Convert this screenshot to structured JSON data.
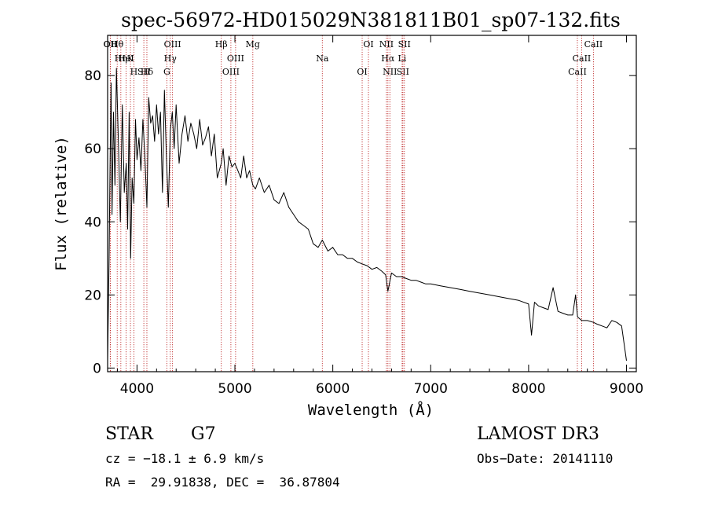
{
  "chart_data": {
    "type": "line",
    "title": "spec-56972-HD015029N381811B01_sp07-132.fits",
    "xlabel": "Wavelength (Å)",
    "ylabel": "Flux (relative)",
    "xlim": [
      3700,
      9100
    ],
    "ylim": [
      -1,
      91
    ],
    "xticks": [
      4000,
      5000,
      6000,
      7000,
      8000,
      9000
    ],
    "yticks": [
      0,
      20,
      40,
      60,
      80
    ],
    "series": [
      {
        "name": "flux",
        "color": "#000000",
        "x": [
          3700,
          3715,
          3725,
          3735,
          3745,
          3760,
          3775,
          3790,
          3810,
          3830,
          3850,
          3870,
          3890,
          3905,
          3920,
          3935,
          3950,
          3968,
          3985,
          4000,
          4020,
          4040,
          4060,
          4080,
          4101,
          4120,
          4140,
          4160,
          4180,
          4200,
          4220,
          4240,
          4260,
          4280,
          4300,
          4320,
          4340,
          4360,
          4380,
          4400,
          4430,
          4460,
          4490,
          4520,
          4550,
          4580,
          4610,
          4640,
          4670,
          4700,
          4730,
          4760,
          4790,
          4820,
          4861,
          4880,
          4910,
          4940,
          4970,
          5000,
          5030,
          5060,
          5090,
          5120,
          5150,
          5183,
          5210,
          5250,
          5300,
          5350,
          5400,
          5450,
          5500,
          5550,
          5600,
          5650,
          5700,
          5750,
          5800,
          5850,
          5893,
          5950,
          6000,
          6050,
          6100,
          6150,
          6200,
          6250,
          6300,
          6350,
          6400,
          6450,
          6500,
          6540,
          6563,
          6600,
          6650,
          6700,
          6750,
          6800,
          6850,
          6900,
          6950,
          7000,
          7100,
          7200,
          7300,
          7400,
          7500,
          7600,
          7700,
          7800,
          7900,
          8000,
          8030,
          8060,
          8100,
          8150,
          8200,
          8250,
          8300,
          8350,
          8400,
          8450,
          8480,
          8500,
          8542,
          8600,
          8662,
          8700,
          8750,
          8800,
          8850,
          8900,
          8950,
          9000
        ],
        "values": [
          2,
          30,
          55,
          78,
          42,
          70,
          50,
          82,
          62,
          40,
          72,
          48,
          56,
          38,
          70,
          30,
          52,
          45,
          68,
          57,
          63,
          54,
          68,
          58,
          44,
          74,
          67,
          69,
          62,
          72,
          64,
          70,
          48,
          76,
          58,
          44,
          65,
          70,
          60,
          72,
          56,
          64,
          69,
          62,
          67,
          64,
          60,
          68,
          61,
          63,
          66,
          58,
          64,
          52,
          56,
          60,
          50,
          58,
          55,
          56,
          54,
          52,
          58,
          52,
          54,
          50,
          49,
          52,
          48,
          50,
          46,
          45,
          48,
          44,
          42,
          40,
          39,
          38,
          34,
          33,
          35,
          32,
          33,
          31,
          31,
          30,
          30,
          29,
          28.5,
          28,
          27,
          27.5,
          26.5,
          25.5,
          21,
          26,
          25,
          25,
          24.5,
          24,
          24,
          23.5,
          23,
          23,
          22.5,
          22,
          21.5,
          21,
          20.5,
          20,
          19.5,
          19,
          18.5,
          17.5,
          9,
          18,
          17,
          16.5,
          16,
          22,
          15.5,
          15,
          14.5,
          14.5,
          20,
          14,
          13,
          13,
          12.5,
          12,
          11.5,
          11,
          13,
          12.5,
          11.5,
          2
        ]
      }
    ],
    "lines": [
      {
        "label": "Hθ",
        "x": 3798,
        "color": "#c03030"
      },
      {
        "label": "K",
        "x": 3933,
        "color": "#c03030"
      },
      {
        "label": "Hδ",
        "x": 4101,
        "color": "#c03030"
      },
      {
        "label": "OII",
        "x": 3727,
        "color": "#c03030"
      },
      {
        "label": "HeI",
        "x": 3889,
        "color": "#c03030"
      },
      {
        "label": "SII",
        "x": 4070,
        "color": "#c03030"
      },
      {
        "label": "OII",
        "x": 3729,
        "color": "#c03030"
      },
      {
        "label": "Hη",
        "x": 3835,
        "color": "#c03030"
      },
      {
        "label": "H",
        "x": 3968,
        "color": "#c03030"
      },
      {
        "label": "OIII",
        "x": 4363,
        "color": "#c03030"
      },
      {
        "label": "Hγ",
        "x": 4340,
        "color": "#c03030"
      },
      {
        "label": "G",
        "x": 4305,
        "color": "#c03030"
      },
      {
        "label": "Hβ",
        "x": 4861,
        "color": "#c03030"
      },
      {
        "label": "OIII",
        "x": 5007,
        "color": "#c03030"
      },
      {
        "label": "OIII",
        "x": 4959,
        "color": "#c03030"
      },
      {
        "label": "Mg",
        "x": 5183,
        "color": "#c03030"
      },
      {
        "label": "Na",
        "x": 5893,
        "color": "#c03030"
      },
      {
        "label": "OI",
        "x": 6300,
        "color": "#c03030"
      },
      {
        "label": "OI",
        "x": 6364,
        "color": "#c03030"
      },
      {
        "label": "Hα",
        "x": 6563,
        "color": "#c03030"
      },
      {
        "label": "SII",
        "x": 6716,
        "color": "#c03030"
      },
      {
        "label": "NII",
        "x": 6548,
        "color": "#c03030"
      },
      {
        "label": "Li",
        "x": 6708,
        "color": "#c03030"
      },
      {
        "label": "NII",
        "x": 6583,
        "color": "#c03030"
      },
      {
        "label": "SII",
        "x": 6731,
        "color": "#c03030"
      },
      {
        "label": "CaII",
        "x": 8542,
        "color": "#c03030"
      },
      {
        "label": "CaII",
        "x": 8498,
        "color": "#c03030"
      },
      {
        "label": "CaII",
        "x": 8662,
        "color": "#c03030"
      }
    ]
  },
  "info": {
    "class_label": "STAR",
    "subclass": "G7",
    "survey": "LAMOST DR3",
    "cz": "cz = −18.1 ± 6.9 km/s",
    "obs_date": "Obs−Date: 20141110",
    "coords": "RA =  29.91838, DEC =  36.87804"
  }
}
